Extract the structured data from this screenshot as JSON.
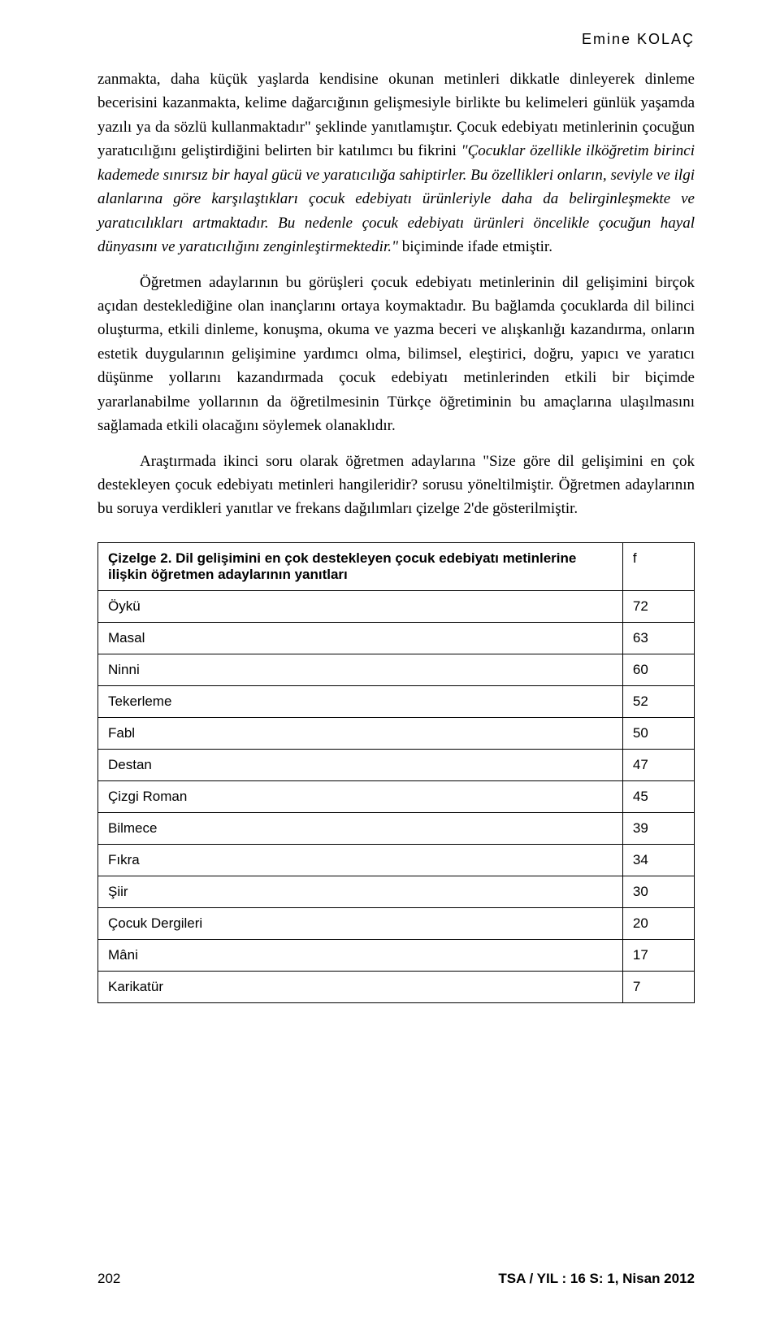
{
  "header": {
    "author": "Emine KOLAÇ"
  },
  "paragraphs": {
    "p1_a": "zanmakta, daha küçük yaşlarda kendisine okunan metinleri dikkatle dinleyerek dinleme becerisini kazanmakta, kelime dağarcığının gelişmesiyle birlikte bu kelimeleri günlük yaşamda yazılı ya da sözlü kullanmaktadır\" şeklinde yanıtlamıştır. Çocuk edebiyatı metinlerinin çocuğun yaratıcılığını geliştirdiğini belirten bir katılımcı bu fikrini ",
    "p1_b": "\"Çocuklar özellikle ilköğretim birinci kademede sınırsız bir hayal gücü ve yaratıcılığa sahiptirler. Bu özellikleri onların, seviyle ve ilgi alanlarına göre karşılaştıkları çocuk edebiyatı ürünleriyle daha da belirginleşmekte ve yaratıcılıkları artmaktadır. Bu nedenle çocuk edebiyatı ürünleri öncelikle çocuğun hayal dünyasını ve yaratıcılığını zenginleştirmektedir.\"",
    "p1_c": " biçiminde ifade etmiştir.",
    "p2": "Öğretmen adaylarının bu görüşleri çocuk edebiyatı metinlerinin dil gelişimini birçok açıdan desteklediğine olan inançlarını ortaya koymaktadır. Bu bağlamda çocuklarda dil bilinci oluşturma, etkili dinleme, konuşma, okuma ve yazma beceri ve alışkanlığı kazandırma, onların estetik duygularının gelişimine yardımcı olma, bilimsel, eleştirici, doğru, yapıcı ve yaratıcı düşünme yollarını kazandırmada çocuk edebiyatı metinlerinden etkili bir biçimde yararlanabilme yollarının da öğretilmesinin Türkçe öğretiminin bu amaçlarına ulaşılmasını sağlamada etkili olacağını söylemek olanaklıdır.",
    "p3": "Araştırmada ikinci soru olarak öğretmen adaylarına \"Size göre dil gelişimini en çok destekleyen çocuk edebiyatı metinleri hangileridir? sorusu yöneltilmiştir. Öğretmen adaylarının bu soruya verdikleri yanıtlar ve frekans dağılımları çizelge 2'de gösterilmiştir."
  },
  "table": {
    "title": "Çizelge 2. Dil gelişimini en çok destekleyen çocuk edebiyatı metinlerine ilişkin öğretmen adaylarının yanıtları",
    "f_header": "f",
    "rows": [
      {
        "label": "Öykü",
        "value": "72"
      },
      {
        "label": "Masal",
        "value": "63"
      },
      {
        "label": "Ninni",
        "value": "60"
      },
      {
        "label": "Tekerleme",
        "value": "52"
      },
      {
        "label": "Fabl",
        "value": "50"
      },
      {
        "label": "Destan",
        "value": "47"
      },
      {
        "label": "Çizgi Roman",
        "value": "45"
      },
      {
        "label": "Bilmece",
        "value": "39"
      },
      {
        "label": "Fıkra",
        "value": "34"
      },
      {
        "label": "Şiir",
        "value": "30"
      },
      {
        "label": "Çocuk Dergileri",
        "value": "20"
      },
      {
        "label": "Mâni",
        "value": "17"
      },
      {
        "label": "Karikatür",
        "value": "7"
      }
    ]
  },
  "footer": {
    "page": "202",
    "journal": "TSA / YIL : 16 S: 1, Nisan 2012"
  }
}
